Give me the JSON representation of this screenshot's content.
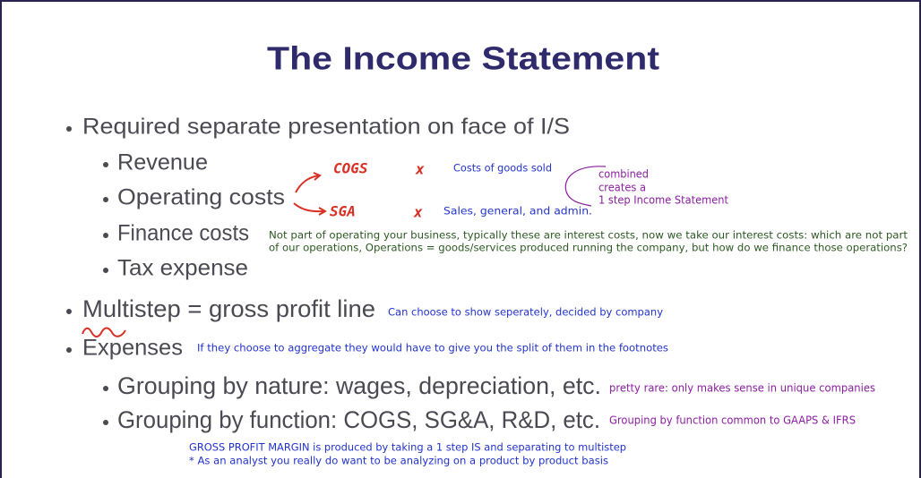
{
  "title": "The Income Statement",
  "bullets": [
    "Required separate presentation on face of I/S",
    "Multistep = gross profit line",
    "Expenses"
  ],
  "face_items": [
    "Revenue",
    "Operating costs",
    "Finance costs",
    "Tax expense"
  ],
  "expense_items": [
    "Grouping by nature: wages, depreciation, etc.",
    "Grouping by function: COGS, SG&A, R&D, etc."
  ],
  "handwriting": {
    "cogs": "COGS",
    "sga": "SGA",
    "cross": "x"
  },
  "notes": {
    "cogs": "Costs of goods sold",
    "sga": "Sales, general, and admin.",
    "combined": [
      "combined",
      "creates a",
      "1 step Income Statement"
    ],
    "finance": [
      "Not part of operating your business, typically these are interest costs, now we take our interest costs: which are not part",
      "of our operations,  Operations = goods/services produced running the company, but how do we finance those operations?"
    ],
    "multistep": "Can choose to show seperately, decided by company",
    "expenses": "If they choose to aggregate they would have to give you the split of them in the footnotes",
    "nature": "pretty rare: only makes sense in unique companies",
    "function": "Grouping by function common to GAAPS & IFRS",
    "margin": [
      "GROSS PROFIT MARGIN is produced by taking a 1 step IS and separating to multistep",
      "* As an analyst you really do want to be analyzing on a product by product basis"
    ]
  }
}
